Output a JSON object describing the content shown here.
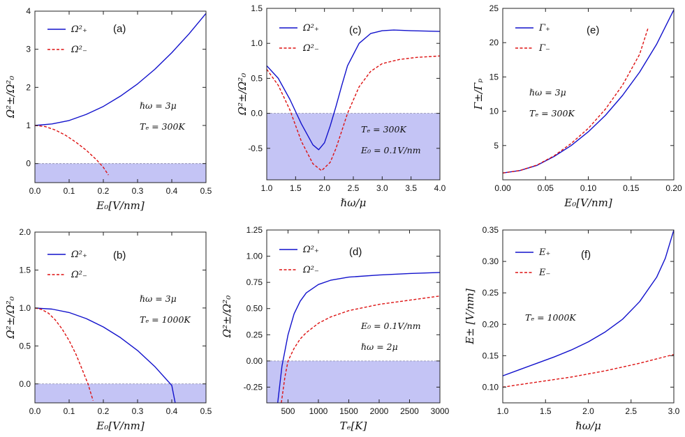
{
  "colors": {
    "plus": "#1111cc",
    "minus": "#dd1111",
    "shade": "#c4c4f5",
    "zero": "#8888aa",
    "axis": "#222222"
  },
  "chart_data": [
    {
      "type": "line",
      "panel_label": "(a)",
      "xlabel": "E₀[V/nm]",
      "ylabel": "Ω²±/Ω²₀",
      "xlim": [
        0,
        0.5
      ],
      "ylim": [
        -0.5,
        4
      ],
      "xticks": [
        "0.0",
        "0.1",
        "0.2",
        "0.3",
        "0.4",
        "0.5"
      ],
      "yticks": [
        "0",
        "1",
        "2",
        "3",
        "4"
      ],
      "legend": [
        "Ω²₊",
        "Ω²₋"
      ],
      "annotations": [
        "ℏω = 3μ",
        "Tₑ = 300K"
      ],
      "shade_below": 0,
      "series": [
        {
          "name": "Ω²₊",
          "x": [
            0,
            0.05,
            0.1,
            0.15,
            0.2,
            0.25,
            0.3,
            0.35,
            0.4,
            0.45,
            0.5
          ],
          "values": [
            1.0,
            1.04,
            1.13,
            1.29,
            1.5,
            1.77,
            2.09,
            2.47,
            2.91,
            3.4,
            3.94
          ]
        },
        {
          "name": "Ω²₋",
          "x": [
            0,
            0.03,
            0.06,
            0.09,
            0.12,
            0.15,
            0.18,
            0.2,
            0.215
          ],
          "values": [
            1.0,
            0.97,
            0.88,
            0.74,
            0.56,
            0.35,
            0.1,
            -0.1,
            -0.3
          ]
        }
      ]
    },
    {
      "type": "line",
      "panel_label": "(b)",
      "xlabel": "E₀[V/nm]",
      "ylabel": "Ω²±/Ω²₀",
      "xlim": [
        0,
        0.5
      ],
      "ylim": [
        -0.25,
        2.0
      ],
      "xticks": [
        "0.0",
        "0.1",
        "0.2",
        "0.3",
        "0.4",
        "0.5"
      ],
      "yticks": [
        "0.0",
        "0.5",
        "1.0",
        "1.5",
        "2.0"
      ],
      "legend": [
        "Ω²₊",
        "Ω²₋"
      ],
      "annotations": [
        "ℏω = 3μ",
        "Tₑ = 1000K"
      ],
      "shade_below": 0,
      "series": [
        {
          "name": "Ω²₊",
          "x": [
            0,
            0.05,
            0.1,
            0.15,
            0.2,
            0.25,
            0.3,
            0.35,
            0.4,
            0.41
          ],
          "values": [
            1.0,
            0.985,
            0.94,
            0.86,
            0.75,
            0.61,
            0.44,
            0.23,
            -0.02,
            -0.25
          ]
        },
        {
          "name": "Ω²₋",
          "x": [
            0,
            0.02,
            0.04,
            0.06,
            0.08,
            0.1,
            0.12,
            0.14,
            0.155,
            0.17
          ],
          "values": [
            1.0,
            0.98,
            0.93,
            0.84,
            0.72,
            0.57,
            0.39,
            0.17,
            0.0,
            -0.22
          ]
        }
      ]
    },
    {
      "type": "line",
      "panel_label": "(c)",
      "xlabel": "ℏω/μ",
      "ylabel": "Ω²±/Ω²₀",
      "xlim": [
        1.0,
        4.0
      ],
      "ylim": [
        -0.95,
        1.5
      ],
      "xticks": [
        "1.0",
        "1.5",
        "2.0",
        "2.5",
        "3.0",
        "3.5",
        "4.0"
      ],
      "yticks": [
        "-0.5",
        "0.0",
        "0.5",
        "1.0",
        "1.5"
      ],
      "legend": [
        "Ω²₊",
        "Ω²₋"
      ],
      "annotations": [
        "Tₑ = 300K",
        "E₀ = 0.1V/nm"
      ],
      "shade_below": 0,
      "series": [
        {
          "name": "Ω²₊",
          "x": [
            1.0,
            1.2,
            1.4,
            1.6,
            1.8,
            1.9,
            2.0,
            2.1,
            2.2,
            2.3,
            2.4,
            2.6,
            2.8,
            3.0,
            3.2,
            3.5,
            4.0
          ],
          "values": [
            0.68,
            0.5,
            0.2,
            -0.15,
            -0.45,
            -0.52,
            -0.42,
            -0.18,
            0.1,
            0.4,
            0.68,
            1.0,
            1.14,
            1.18,
            1.19,
            1.18,
            1.17
          ]
        },
        {
          "name": "Ω²₋",
          "x": [
            1.0,
            1.2,
            1.4,
            1.6,
            1.8,
            1.95,
            2.1,
            2.2,
            2.3,
            2.4,
            2.6,
            2.8,
            3.0,
            3.3,
            3.6,
            4.0
          ],
          "values": [
            0.63,
            0.4,
            0.05,
            -0.4,
            -0.72,
            -0.82,
            -0.7,
            -0.5,
            -0.25,
            0.0,
            0.38,
            0.6,
            0.71,
            0.77,
            0.8,
            0.82
          ]
        }
      ]
    },
    {
      "type": "line",
      "panel_label": "(d)",
      "xlabel": "Tₑ[K]",
      "ylabel": "Ω²±/Ω²₀",
      "xlim": [
        150,
        3000
      ],
      "ylim": [
        -0.4,
        1.25
      ],
      "xticks": [
        "500",
        "1000",
        "1500",
        "2000",
        "2500",
        "3000"
      ],
      "yticks": [
        "-0.25",
        "0.00",
        "0.25",
        "0.50",
        "0.75",
        "1.00",
        "1.25"
      ],
      "legend": [
        "Ω²₊",
        "Ω²₋"
      ],
      "annotations": [
        "E₀ = 0.1V/nm",
        "ℏω = 2μ"
      ],
      "shade_below": 0,
      "series": [
        {
          "name": "Ω²₊",
          "x": [
            330,
            400,
            500,
            600,
            700,
            800,
            1000,
            1200,
            1500,
            2000,
            2500,
            3000
          ],
          "values": [
            -0.4,
            -0.05,
            0.25,
            0.45,
            0.57,
            0.65,
            0.73,
            0.77,
            0.8,
            0.82,
            0.835,
            0.845
          ]
        },
        {
          "name": "Ω²₋",
          "x": [
            390,
            450,
            500,
            600,
            700,
            800,
            1000,
            1200,
            1500,
            2000,
            2500,
            3000
          ],
          "values": [
            -0.4,
            -0.15,
            0.0,
            0.12,
            0.21,
            0.27,
            0.36,
            0.42,
            0.48,
            0.54,
            0.58,
            0.62
          ]
        }
      ]
    },
    {
      "type": "line",
      "panel_label": "(e)",
      "xlabel": "E₀[V/nm]",
      "ylabel": "Γ±/Γₚ",
      "xlim": [
        0,
        0.2
      ],
      "ylim": [
        0,
        25
      ],
      "xticks": [
        "0.00",
        "0.05",
        "0.10",
        "0.15",
        "0.20"
      ],
      "yticks": [
        "5",
        "10",
        "15",
        "20",
        "25"
      ],
      "legend": [
        "Γ₊",
        "Γ₋"
      ],
      "annotations": [
        "ℏω = 3μ",
        "Tₑ = 300K"
      ],
      "shade_below": null,
      "series": [
        {
          "name": "Γ₊",
          "x": [
            0,
            0.02,
            0.04,
            0.06,
            0.08,
            0.1,
            0.12,
            0.14,
            0.16,
            0.18,
            0.2
          ],
          "values": [
            1.0,
            1.35,
            2.1,
            3.4,
            5.0,
            7.0,
            9.4,
            12.3,
            15.7,
            19.8,
            24.8
          ]
        },
        {
          "name": "Γ₋",
          "x": [
            0,
            0.02,
            0.04,
            0.06,
            0.08,
            0.1,
            0.12,
            0.14,
            0.16,
            0.17
          ],
          "values": [
            1.0,
            1.35,
            2.15,
            3.5,
            5.3,
            7.5,
            10.3,
            13.8,
            18.3,
            22.2
          ]
        }
      ]
    },
    {
      "type": "line",
      "panel_label": "(f)",
      "xlabel": "ℏω/μ",
      "ylabel": "E± [V/nm]",
      "xlim": [
        1.0,
        3.0
      ],
      "ylim": [
        0.075,
        0.35
      ],
      "xticks": [
        "1.0",
        "1.5",
        "2.0",
        "2.5",
        "3.0"
      ],
      "yticks": [
        "0.10",
        "0.15",
        "0.20",
        "0.25",
        "0.30",
        "0.35"
      ],
      "legend": [
        "E₊",
        "E₋"
      ],
      "annotations": [
        "Tₑ = 1000K"
      ],
      "shade_below": null,
      "series": [
        {
          "name": "E₊",
          "x": [
            1.0,
            1.2,
            1.4,
            1.6,
            1.8,
            2.0,
            2.2,
            2.4,
            2.6,
            2.8,
            2.9,
            3.0
          ],
          "values": [
            0.118,
            0.128,
            0.138,
            0.148,
            0.159,
            0.172,
            0.188,
            0.208,
            0.236,
            0.275,
            0.305,
            0.35
          ]
        },
        {
          "name": "E₋",
          "x": [
            1.0,
            1.2,
            1.4,
            1.6,
            1.8,
            2.0,
            2.2,
            2.4,
            2.6,
            2.8,
            3.0
          ],
          "values": [
            0.1,
            0.104,
            0.108,
            0.112,
            0.116,
            0.121,
            0.126,
            0.132,
            0.138,
            0.145,
            0.152
          ]
        }
      ]
    }
  ]
}
